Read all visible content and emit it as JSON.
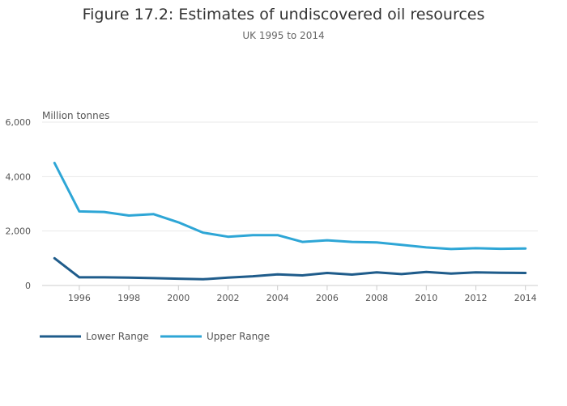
{
  "chart_data": {
    "type": "line",
    "title": "Figure 17.2: Estimates of undiscovered oil resources",
    "subtitle": "UK 1995 to 2014",
    "ylabel": "Million tonnes",
    "xlabel": "",
    "ylim": [
      0,
      6000
    ],
    "xlim": [
      1994.5,
      2014.5
    ],
    "y_ticks": [
      0,
      2000,
      4000,
      6000
    ],
    "y_tick_labels": [
      "0",
      "2,000",
      "4,000",
      "6,000"
    ],
    "x_ticks": [
      1996,
      1998,
      2000,
      2002,
      2004,
      2006,
      2008,
      2010,
      2012,
      2014
    ],
    "x_tick_labels": [
      "1996",
      "1998",
      "2000",
      "2002",
      "2004",
      "2006",
      "2008",
      "2010",
      "2012",
      "2014"
    ],
    "grid": true,
    "legend_position": "bottom-left",
    "x": [
      1995,
      1996,
      1997,
      1998,
      1999,
      2000,
      2001,
      2002,
      2003,
      2004,
      2005,
      2006,
      2007,
      2008,
      2009,
      2010,
      2011,
      2012,
      2013,
      2014
    ],
    "series": [
      {
        "name": "Lower Range",
        "color": "#1f5c8b",
        "values": [
          1000,
          300,
          300,
          290,
          270,
          250,
          230,
          290,
          340,
          410,
          370,
          460,
          400,
          480,
          420,
          500,
          440,
          480,
          470,
          460
        ]
      },
      {
        "name": "Upper Range",
        "color": "#2ea6d6",
        "values": [
          4500,
          2720,
          2700,
          2570,
          2620,
          2320,
          1940,
          1790,
          1850,
          1850,
          1600,
          1660,
          1600,
          1580,
          1490,
          1400,
          1340,
          1370,
          1350,
          1360
        ]
      }
    ]
  }
}
